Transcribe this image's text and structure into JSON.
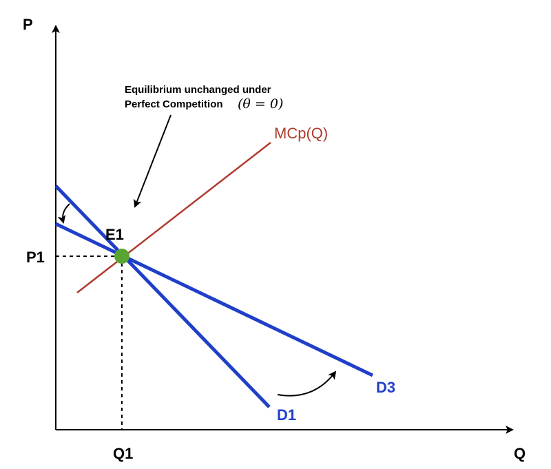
{
  "axes": {
    "y_label": "P",
    "x_label": "Q",
    "price_tick": "P1",
    "quantity_tick": "Q1"
  },
  "curves": {
    "marginal_cost": {
      "label": "MCp(Q)",
      "color": "#b03a2e"
    },
    "demand_1": {
      "label": "D1",
      "color": "#1f3fc9"
    },
    "demand_3": {
      "label": "D3",
      "color": "#1f3fc9"
    }
  },
  "equilibrium": {
    "label": "E1",
    "marker_color": "#5aa532"
  },
  "annotation": {
    "line1": "Equilibrium unchanged under",
    "line2": "Perfect Competition",
    "math": "(θ = 0)"
  },
  "icons": [
    "pointer-arrow-icon",
    "rotation-arrow-icon"
  ]
}
